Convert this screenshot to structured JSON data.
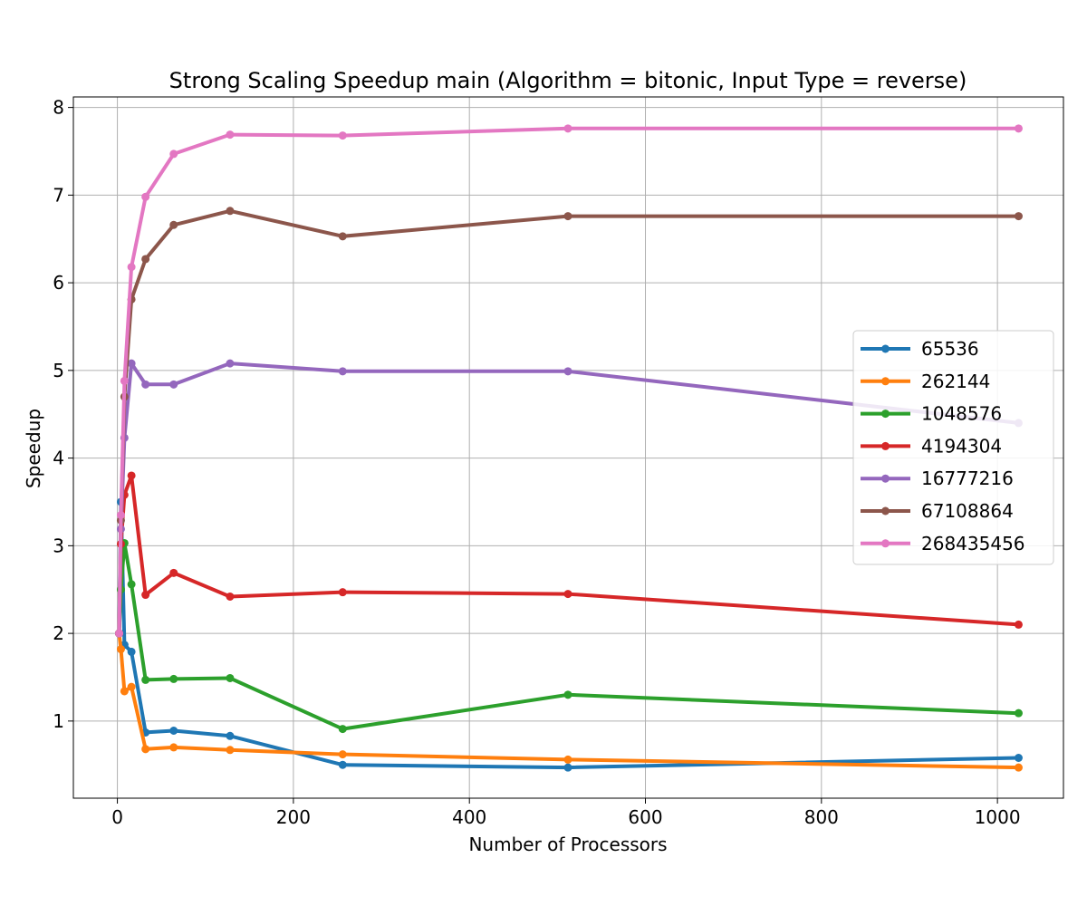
{
  "chart_data": {
    "type": "line",
    "title": "Strong Scaling Speedup main (Algorithm = bitonic, Input Type = reverse)",
    "xlabel": "Number of Processors",
    "ylabel": "Speedup",
    "xlim": [
      -50,
      1075
    ],
    "ylim": [
      0.12,
      8.12
    ],
    "xticks": [
      0,
      200,
      400,
      600,
      800,
      1000
    ],
    "yticks": [
      1,
      2,
      3,
      4,
      5,
      6,
      7,
      8
    ],
    "grid": true,
    "legend_position": "center-right",
    "series": [
      {
        "name": "65536",
        "color": "#1f77b4",
        "x": [
          2,
          4,
          8,
          16,
          32,
          64,
          128,
          256,
          512,
          1024
        ],
        "y": [
          2.0,
          3.5,
          1.87,
          1.79,
          0.87,
          0.89,
          0.83,
          0.5,
          0.47,
          0.58
        ]
      },
      {
        "name": "262144",
        "color": "#ff7f0e",
        "x": [
          2,
          4,
          8,
          16,
          32,
          64,
          128,
          256,
          512,
          1024
        ],
        "y": [
          2.0,
          1.82,
          1.34,
          1.39,
          0.68,
          0.7,
          0.67,
          0.62,
          0.56,
          0.47
        ]
      },
      {
        "name": "1048576",
        "color": "#2ca02c",
        "x": [
          2,
          4,
          8,
          16,
          32,
          64,
          128,
          256,
          512,
          1024
        ],
        "y": [
          2.0,
          2.5,
          3.03,
          2.56,
          1.47,
          1.48,
          1.49,
          0.91,
          1.3,
          1.09
        ]
      },
      {
        "name": "4194304",
        "color": "#d62728",
        "x": [
          2,
          4,
          8,
          16,
          32,
          64,
          128,
          256,
          512,
          1024
        ],
        "y": [
          2.0,
          3.02,
          3.58,
          3.8,
          2.44,
          2.69,
          2.42,
          2.47,
          2.45,
          2.1
        ]
      },
      {
        "name": "16777216",
        "color": "#9467bd",
        "x": [
          2,
          4,
          8,
          16,
          32,
          64,
          128,
          256,
          512,
          1024
        ],
        "y": [
          2.0,
          3.19,
          4.23,
          5.08,
          4.84,
          4.84,
          5.08,
          4.99,
          4.99,
          4.4
        ]
      },
      {
        "name": "67108864",
        "color": "#8c564b",
        "x": [
          2,
          4,
          8,
          16,
          32,
          64,
          128,
          256,
          512,
          1024
        ],
        "y": [
          2.0,
          3.29,
          4.7,
          5.81,
          6.27,
          6.66,
          6.82,
          6.53,
          6.76,
          6.76
        ]
      },
      {
        "name": "268435456",
        "color": "#e377c2",
        "x": [
          2,
          4,
          8,
          16,
          32,
          64,
          128,
          256,
          512,
          1024
        ],
        "y": [
          2.0,
          3.35,
          4.88,
          6.18,
          6.98,
          7.47,
          7.69,
          7.68,
          7.76,
          7.76
        ]
      }
    ]
  }
}
